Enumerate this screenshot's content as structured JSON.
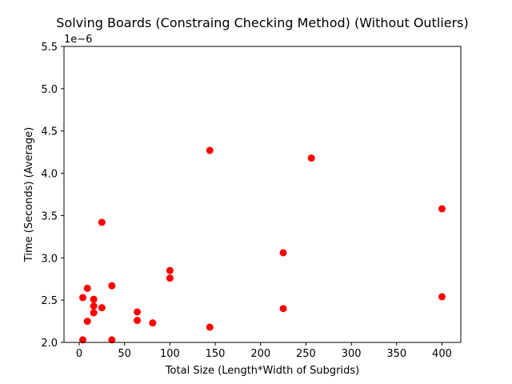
{
  "chart_data": {
    "type": "scatter",
    "title": "Solving Boards (Constraing Checking Method) (Without Outliers)",
    "xlabel": "Total Size (Length*Width of Subgrids)",
    "ylabel": "Time (Seconds) (Average)",
    "y_offset_label": "1e−6",
    "xlim": [
      -16.75,
      420.75
    ],
    "ylim": [
      2.0,
      5.5
    ],
    "x_ticks": [
      0,
      50,
      100,
      150,
      200,
      250,
      300,
      350,
      400
    ],
    "x_tick_labels": [
      "0",
      "50",
      "100",
      "150",
      "200",
      "250",
      "300",
      "350",
      "400"
    ],
    "y_ticks": [
      2.0,
      2.5,
      3.0,
      3.5,
      4.0,
      4.5,
      5.0,
      5.5
    ],
    "y_tick_labels": [
      "2.0",
      "2.5",
      "3.0",
      "3.5",
      "4.0",
      "4.5",
      "5.0",
      "5.5"
    ],
    "grid": false,
    "legend": "none",
    "marker_color": "#ff0000",
    "series": [
      {
        "x": [
          4,
          4,
          9,
          9,
          16,
          16,
          16,
          25,
          25,
          36,
          36,
          64,
          64,
          81,
          100,
          100,
          144,
          144,
          225,
          225,
          256,
          400,
          400
        ],
        "y": [
          2.53,
          2.03,
          2.64,
          2.25,
          2.51,
          2.43,
          2.35,
          3.42,
          2.41,
          2.67,
          2.03,
          2.36,
          2.26,
          2.23,
          2.85,
          2.76,
          4.27,
          2.18,
          3.06,
          2.4,
          4.18,
          3.58,
          2.54
        ]
      }
    ]
  }
}
